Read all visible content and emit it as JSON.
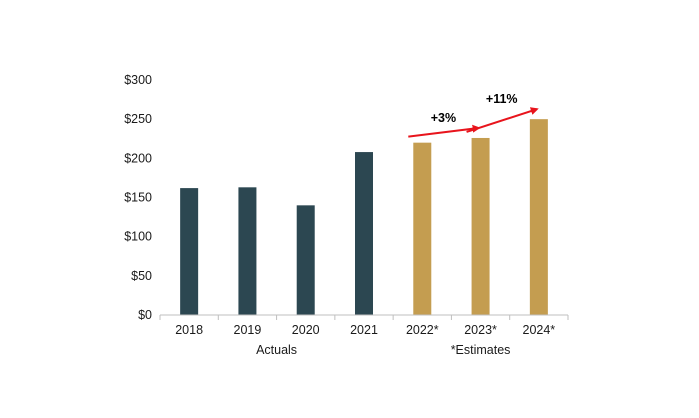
{
  "chart_data": {
    "type": "bar",
    "categories": [
      "2018",
      "2019",
      "2020",
      "2021",
      "2022*",
      "2023*",
      "2024*"
    ],
    "values": [
      162,
      163,
      140,
      208,
      220,
      226,
      250
    ],
    "series_kind": [
      "actual",
      "actual",
      "actual",
      "actual",
      "estimate",
      "estimate",
      "estimate"
    ],
    "ylim": [
      0,
      300
    ],
    "yticks": [
      0,
      50,
      100,
      150,
      200,
      250,
      300
    ],
    "ytick_labels": [
      "$0",
      "$50",
      "$100",
      "$150",
      "$200",
      "$250",
      "$300"
    ],
    "grid": false,
    "colors": {
      "actual": "#2c4751",
      "estimate": "#c49d50",
      "arrow": "#e8141c",
      "axis": "#bfbfbf"
    },
    "group_labels": [
      {
        "text": "Actuals",
        "under": [
          0,
          3
        ]
      },
      {
        "text": "*Estimates",
        "under": [
          4,
          6
        ]
      }
    ],
    "annotations": [
      {
        "text": "+3%",
        "from": 4,
        "to": 5
      },
      {
        "text": "+11%",
        "from": 5,
        "to": 6
      }
    ]
  }
}
